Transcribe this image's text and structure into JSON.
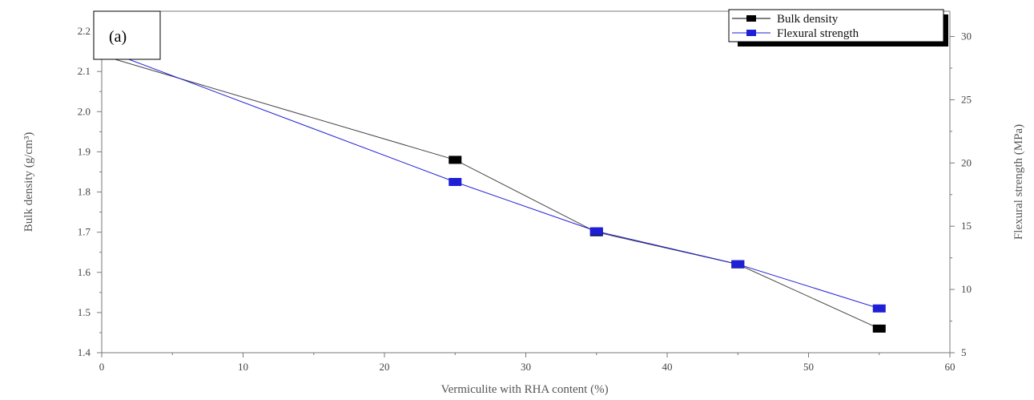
{
  "chart_data": {
    "type": "line",
    "panel_label": "(a)",
    "xlabel": "Vermiculite with RHA content (%)",
    "ylabel_left": "Bulk density (g/cm³)",
    "ylabel_right": "Flexural strength (MPa)",
    "xlim": [
      0,
      60
    ],
    "ylim_left": [
      1.4,
      2.25
    ],
    "ylim_right": [
      5,
      32
    ],
    "x_ticks": [
      0,
      10,
      20,
      30,
      40,
      50,
      60
    ],
    "y_left_ticks": [
      1.4,
      1.5,
      1.6,
      1.7,
      1.8,
      1.9,
      2.0,
      2.1,
      2.2
    ],
    "y_right_ticks": [
      5,
      10,
      15,
      20,
      25,
      30
    ],
    "legend_position": "top-right",
    "series": [
      {
        "name": "Bulk density",
        "axis": "left",
        "color": "#000000",
        "x": [
          0,
          25,
          35,
          45,
          55
        ],
        "y": [
          2.14,
          1.88,
          1.7,
          1.62,
          1.46
        ]
      },
      {
        "name": "Flexural strength",
        "axis": "right",
        "color": "#1f1fd6",
        "x": [
          0,
          25,
          35,
          45,
          55
        ],
        "y": [
          29.0,
          18.5,
          14.6,
          12.0,
          8.5
        ]
      }
    ]
  }
}
